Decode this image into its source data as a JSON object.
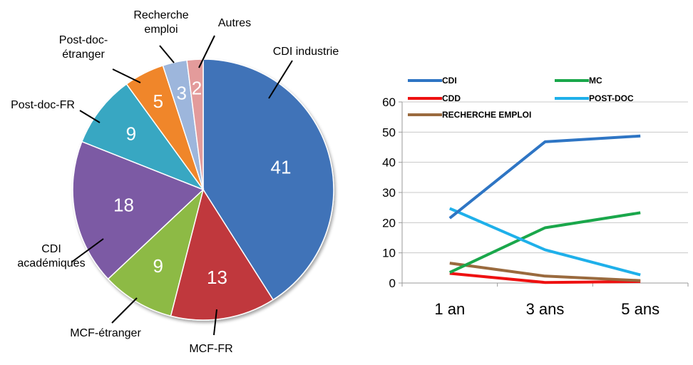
{
  "chart_data": [
    {
      "type": "pie",
      "slices": [
        {
          "label": "CDI industrie",
          "value": 41,
          "color": "#3f73b8"
        },
        {
          "label": "MCF-FR",
          "value": 13,
          "color": "#c0393c"
        },
        {
          "label": "MCF-étranger",
          "value": 9,
          "color": "#8dba44"
        },
        {
          "label": "CDI académiques",
          "value": 18,
          "color": "#7b5aa4"
        },
        {
          "label": "Post-doc-FR",
          "value": 9,
          "color": "#38a7c2"
        },
        {
          "label": "Post-doc-étranger",
          "value": 5,
          "color": "#f0862a"
        },
        {
          "label": "Recherche emploi",
          "value": 3,
          "color": "#9db6dc"
        },
        {
          "label": "Autres",
          "value": 2,
          "color": "#e39b9b"
        }
      ]
    },
    {
      "type": "line",
      "categories": [
        "1 an",
        "3 ans",
        "5 ans"
      ],
      "ylim": [
        0,
        60
      ],
      "yticks": [
        0,
        10,
        20,
        30,
        40,
        50,
        60
      ],
      "grid": true,
      "legend_position": "top",
      "series": [
        {
          "name": "CDI",
          "values": [
            21.5,
            46.8,
            48.7
          ],
          "color": "#2e75c4"
        },
        {
          "name": "MC",
          "values": [
            3.5,
            18.3,
            23.3
          ],
          "color": "#1aa74b"
        },
        {
          "name": "CDD",
          "values": [
            3.2,
            0.2,
            0.5
          ],
          "color": "#ee1111"
        },
        {
          "name": "POST-DOC",
          "values": [
            24.7,
            11.0,
            2.7
          ],
          "color": "#1fb0ea"
        },
        {
          "name": "RECHERCHE EMPLOI",
          "values": [
            6.6,
            2.3,
            0.8
          ],
          "color": "#9a6a3e"
        }
      ]
    }
  ]
}
